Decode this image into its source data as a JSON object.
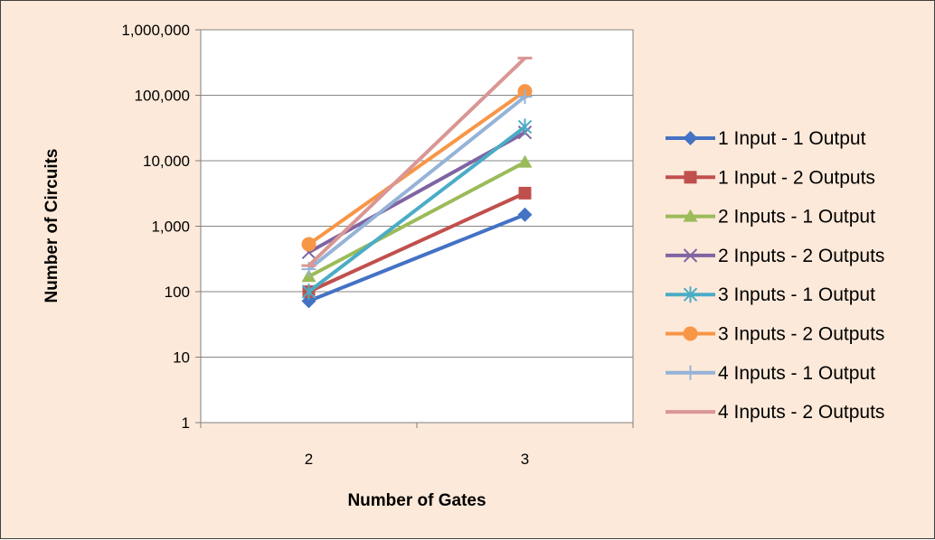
{
  "chart_data": {
    "type": "line",
    "title": "",
    "xlabel": "Number of Gates",
    "ylabel": "Number of Circuits",
    "x": [
      2,
      3
    ],
    "x_tick_labels": [
      "2",
      "3"
    ],
    "y_scale": "log",
    "ylim": [
      1,
      1000000
    ],
    "y_tick_labels": [
      "1",
      "10",
      "100",
      "1,000",
      "10,000",
      "100,000",
      "1,000,000"
    ],
    "grid": "horizontal",
    "legend_position": "right",
    "series": [
      {
        "name": "1 Input - 1 Output",
        "values": [
          72,
          1500
        ],
        "color": "#4472c4",
        "marker": "diamond"
      },
      {
        "name": "1 Input - 2 Outputs",
        "values": [
          100,
          3200
        ],
        "color": "#c0504d",
        "marker": "square"
      },
      {
        "name": "2 Inputs - 1 Output",
        "values": [
          170,
          9500
        ],
        "color": "#9bbb59",
        "marker": "triangle"
      },
      {
        "name": "2 Inputs - 2 Outputs",
        "values": [
          400,
          27000
        ],
        "color": "#8064a2",
        "marker": "x"
      },
      {
        "name": "3 Inputs - 1 Output",
        "values": [
          100,
          33000
        ],
        "color": "#4bacc6",
        "marker": "star"
      },
      {
        "name": "3 Inputs - 2 Outputs",
        "values": [
          530,
          115000
        ],
        "color": "#f79646",
        "marker": "circle"
      },
      {
        "name": "4 Inputs - 1 Output",
        "values": [
          220,
          95000
        ],
        "color": "#95b3d7",
        "marker": "plus"
      },
      {
        "name": "4 Inputs - 2 Outputs",
        "values": [
          250,
          370000
        ],
        "color": "#d99694",
        "marker": "dash"
      }
    ]
  }
}
